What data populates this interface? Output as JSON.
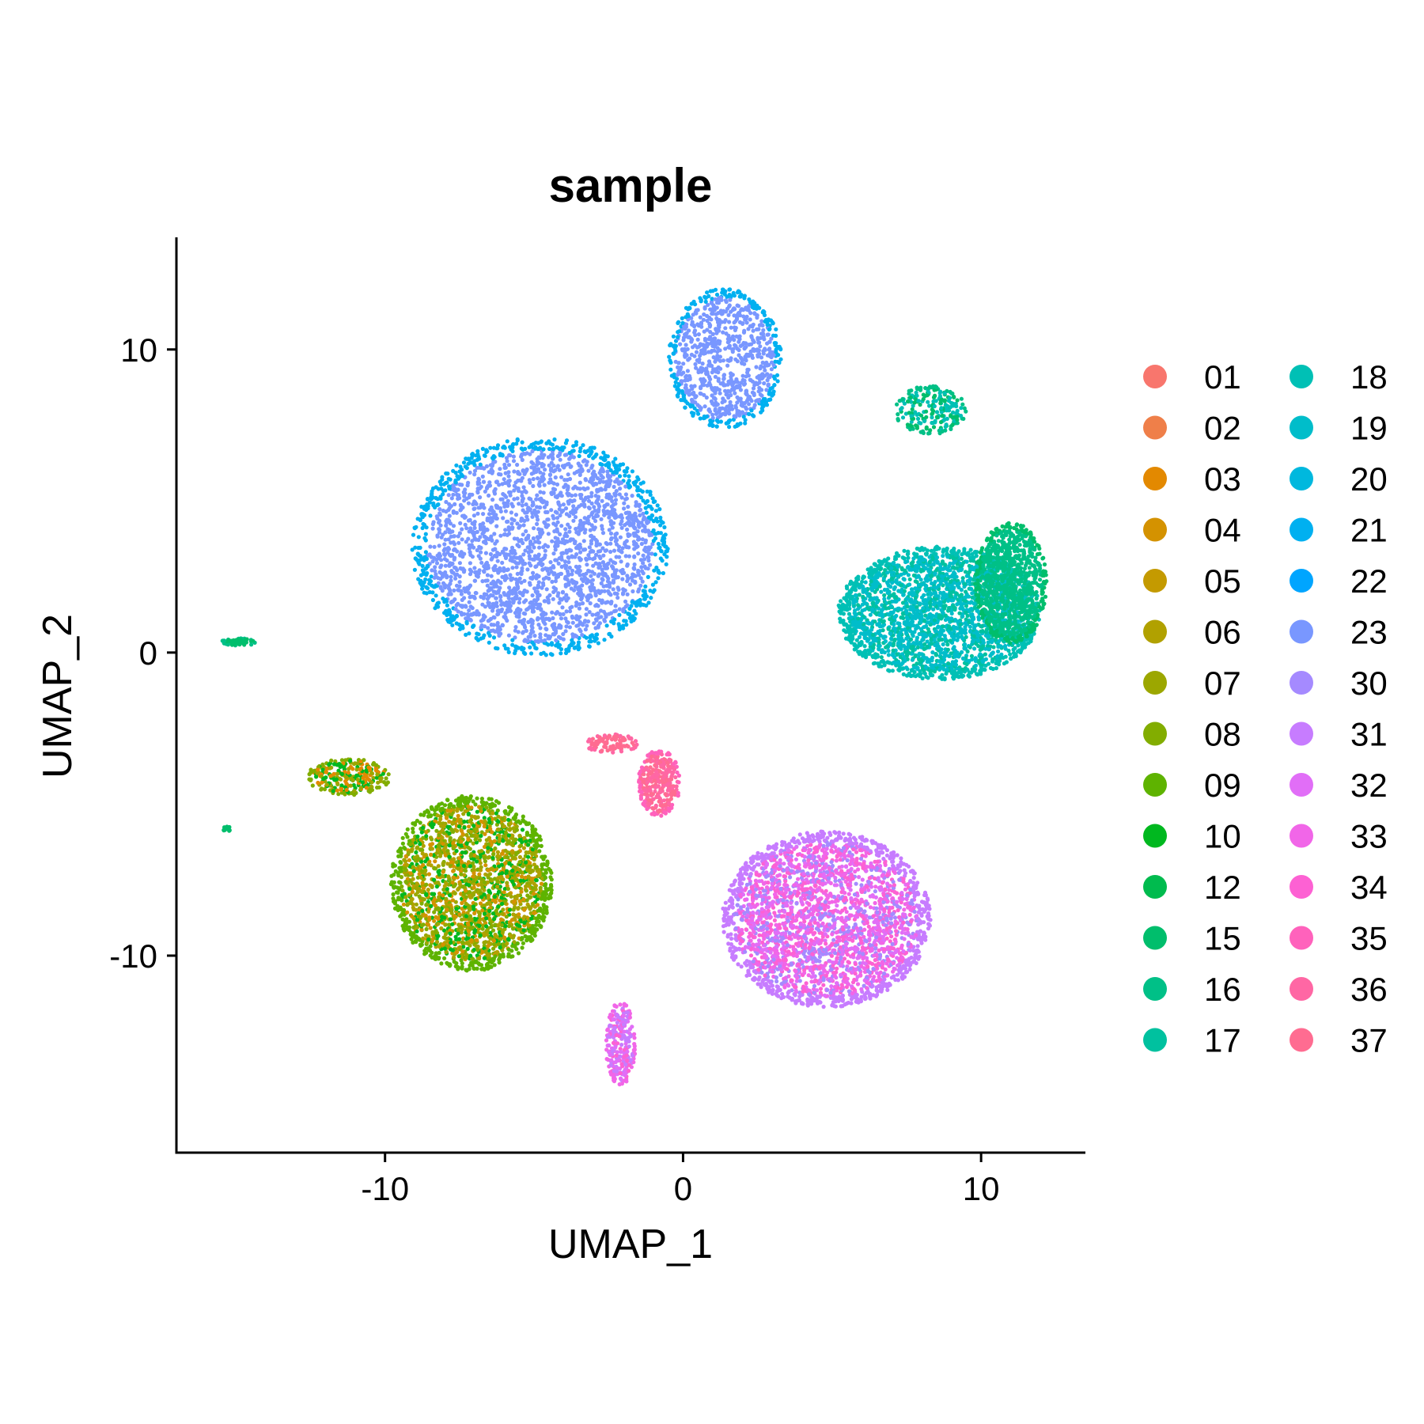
{
  "chart_data": {
    "type": "scatter",
    "title": "sample",
    "xlabel": "UMAP_1",
    "ylabel": "UMAP_2",
    "xlim": [
      -17,
      13.5
    ],
    "ylim": [
      -16.5,
      13.7
    ],
    "xticks": [
      -10,
      0,
      10
    ],
    "yticks": [
      -10,
      0,
      10
    ],
    "grid": false,
    "legend_position": "right",
    "legend_columns": 2,
    "series": [
      {
        "name": "01",
        "color": "#F8766D"
      },
      {
        "name": "02",
        "color": "#EF7F49"
      },
      {
        "name": "03",
        "color": "#E38900"
      },
      {
        "name": "04",
        "color": "#D49200"
      },
      {
        "name": "05",
        "color": "#C49A00"
      },
      {
        "name": "06",
        "color": "#B1A100"
      },
      {
        "name": "07",
        "color": "#9CA700"
      },
      {
        "name": "08",
        "color": "#82AD00"
      },
      {
        "name": "09",
        "color": "#5EB300"
      },
      {
        "name": "10",
        "color": "#00B81F"
      },
      {
        "name": "12",
        "color": "#00BB4E"
      },
      {
        "name": "15",
        "color": "#00BE6C"
      },
      {
        "name": "16",
        "color": "#00C087"
      },
      {
        "name": "17",
        "color": "#00C19F"
      },
      {
        "name": "18",
        "color": "#00C0B5"
      },
      {
        "name": "19",
        "color": "#00BDCA"
      },
      {
        "name": "20",
        "color": "#00B8DE"
      },
      {
        "name": "21",
        "color": "#00B0F0"
      },
      {
        "name": "22",
        "color": "#00A5FF"
      },
      {
        "name": "23",
        "color": "#7997FF"
      },
      {
        "name": "30",
        "color": "#A58AFF"
      },
      {
        "name": "31",
        "color": "#C77CFF"
      },
      {
        "name": "32",
        "color": "#E16EF7"
      },
      {
        "name": "33",
        "color": "#F166E8"
      },
      {
        "name": "34",
        "color": "#FD61D3"
      },
      {
        "name": "35",
        "color": "#FF62BC"
      },
      {
        "name": "36",
        "color": "#FF67A4"
      },
      {
        "name": "37",
        "color": "#FF6C91"
      }
    ],
    "clusters": [
      {
        "cx": -4.8,
        "cy": 3.5,
        "rx": 4.3,
        "ry": 3.6,
        "n": 2600,
        "colors": [
          "#7997FF"
        ],
        "edge": "#00B0F0"
      },
      {
        "cx": 1.4,
        "cy": 9.7,
        "rx": 1.9,
        "ry": 2.3,
        "n": 900,
        "colors": [
          "#7997FF"
        ],
        "edge": "#00B0F0"
      },
      {
        "cx": 8.6,
        "cy": 1.3,
        "rx": 3.4,
        "ry": 2.2,
        "n": 2400,
        "colors": [
          "#00BDCA",
          "#00BDCA",
          "#00C19F"
        ],
        "edge": "#00C0B5"
      },
      {
        "cx": 11.0,
        "cy": 2.3,
        "rx": 1.2,
        "ry": 2.0,
        "n": 900,
        "colors": [
          "#00C087"
        ],
        "edge": "#00BE6C"
      },
      {
        "cx": 8.3,
        "cy": 8.0,
        "rx": 1.2,
        "ry": 0.8,
        "n": 220,
        "colors": [
          "#00C0B5",
          "#00BE6C"
        ],
        "edge": "#00C087"
      },
      {
        "cx": -7.1,
        "cy": -7.6,
        "rx": 2.7,
        "ry": 2.9,
        "n": 2200,
        "colors": [
          "#9CA700",
          "#82AD00",
          "#00B81F",
          "#D49200",
          "#B1A100"
        ],
        "edge": "#5EB300"
      },
      {
        "cx": -11.2,
        "cy": -4.1,
        "rx": 1.4,
        "ry": 0.6,
        "n": 280,
        "colors": [
          "#9CA700",
          "#00B81F",
          "#E38900"
        ],
        "edge": "#82AD00"
      },
      {
        "cx": -0.8,
        "cy": -4.3,
        "rx": 0.7,
        "ry": 1.1,
        "n": 320,
        "colors": [
          "#FF6C91",
          "#FF67A4"
        ],
        "edge": "#FF62BC"
      },
      {
        "cx": -2.4,
        "cy": -3.0,
        "rx": 0.9,
        "ry": 0.3,
        "n": 90,
        "colors": [
          "#FF6C91"
        ],
        "edge": "#FF67A4"
      },
      {
        "cx": 4.8,
        "cy": -8.8,
        "rx": 3.5,
        "ry": 2.9,
        "n": 2800,
        "colors": [
          "#FD61D3",
          "#F166E8",
          "#E16EF7",
          "#A58AFF"
        ],
        "edge": "#C77CFF"
      },
      {
        "cx": -2.1,
        "cy": -12.9,
        "rx": 0.5,
        "ry": 1.4,
        "n": 260,
        "colors": [
          "#FD61D3",
          "#E16EF7",
          "#C77CFF"
        ],
        "edge": "#F166E8"
      },
      {
        "cx": -14.9,
        "cy": 0.35,
        "rx": 0.6,
        "ry": 0.12,
        "n": 50,
        "colors": [
          "#00BE6C"
        ],
        "edge": "#00C087"
      },
      {
        "cx": -15.3,
        "cy": -5.8,
        "rx": 0.15,
        "ry": 0.1,
        "n": 12,
        "colors": [
          "#00BE6C"
        ],
        "edge": "#00BE6C"
      }
    ]
  }
}
